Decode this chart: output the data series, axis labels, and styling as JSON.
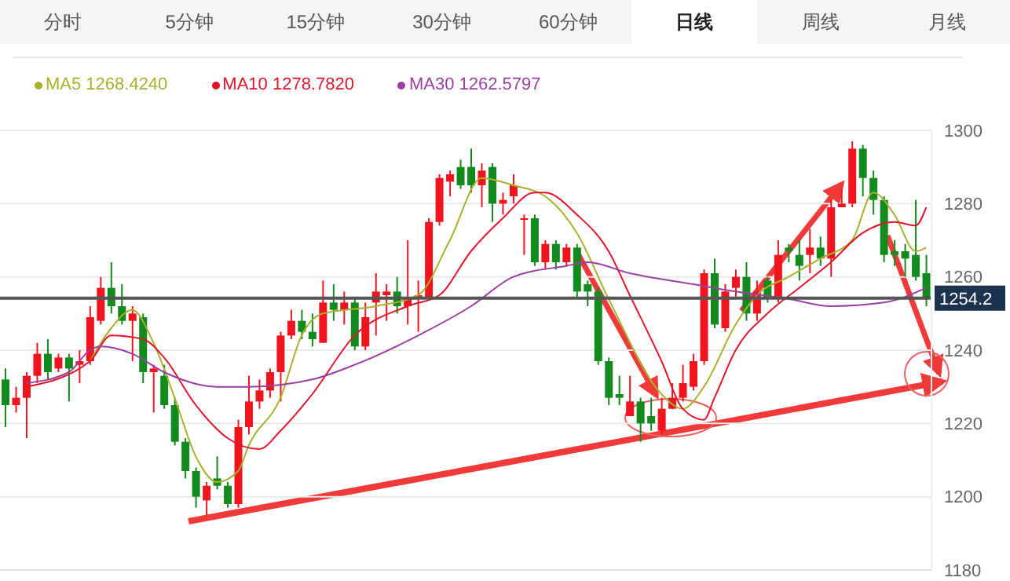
{
  "chart_data": {
    "type": "candlestick",
    "annotations": [
      "分时",
      "5分钟",
      "15分钟",
      "30分钟",
      "60分钟",
      "日线",
      "周线",
      "月线"
    ],
    "categories": [
      null,
      null,
      null,
      null,
      null,
      null,
      null,
      null,
      null,
      null,
      null,
      null,
      null,
      null,
      null,
      null,
      null,
      null,
      null,
      null,
      null,
      null,
      null,
      null,
      null,
      null,
      null,
      null,
      null,
      null,
      null,
      null,
      null,
      null,
      null,
      null,
      null,
      null,
      null,
      null,
      null,
      null,
      null,
      null,
      null,
      null,
      null,
      null,
      null,
      null,
      null,
      null,
      null,
      null,
      null,
      null,
      null,
      null,
      null,
      null,
      null,
      null,
      null,
      null,
      null,
      null,
      null,
      null,
      null,
      null,
      null,
      null,
      null,
      null,
      null,
      null,
      null,
      null,
      null,
      null,
      null,
      null,
      null,
      null,
      null,
      null,
      null,
      null
    ],
    "ohlc": [
      [
        1232,
        1235,
        1219,
        1225
      ],
      [
        1225,
        1230,
        1223,
        1227
      ],
      [
        1227,
        1234,
        1216,
        1233
      ],
      [
        1233,
        1242,
        1231,
        1239
      ],
      [
        1239,
        1243,
        1232,
        1234
      ],
      [
        1235,
        1239,
        1234,
        1238
      ],
      [
        1238,
        1239,
        1226,
        1235
      ],
      [
        1236,
        1240,
        1231,
        1237
      ],
      [
        1237,
        1252,
        1236,
        1249
      ],
      [
        1248,
        1260,
        1247,
        1257
      ],
      [
        1257,
        1264,
        1250,
        1252
      ],
      [
        1252,
        1258,
        1247,
        1248
      ],
      [
        1248,
        1252,
        1237,
        1250
      ],
      [
        1249,
        1250,
        1231,
        1234
      ],
      [
        1234,
        1236,
        1223,
        1235
      ],
      [
        1233,
        1236,
        1224,
        1225
      ],
      [
        1225,
        1227,
        1214,
        1215
      ],
      [
        1215,
        1216,
        1205,
        1207
      ],
      [
        1207,
        1208,
        1197,
        1200
      ],
      [
        1199,
        1204,
        1195,
        1203
      ],
      [
        1205,
        1211,
        1202,
        1203
      ],
      [
        1203,
        1204,
        1197,
        1198
      ],
      [
        1198,
        1221,
        1197,
        1219
      ],
      [
        1219,
        1233,
        1217,
        1226
      ],
      [
        1226,
        1232,
        1224,
        1229
      ],
      [
        1229,
        1235,
        1227,
        1234
      ],
      [
        1234,
        1245,
        1226,
        1244
      ],
      [
        1244,
        1251,
        1243,
        1248
      ],
      [
        1248,
        1251,
        1243,
        1245
      ],
      [
        1245,
        1250,
        1241,
        1243
      ],
      [
        1242,
        1259,
        1242,
        1253
      ],
      [
        1253,
        1258,
        1248,
        1251
      ],
      [
        1251,
        1256,
        1247,
        1253
      ],
      [
        1253,
        1254,
        1240,
        1241
      ],
      [
        1241,
        1253,
        1240,
        1249
      ],
      [
        1253,
        1261,
        1244,
        1256
      ],
      [
        1255,
        1258,
        1248,
        1256
      ],
      [
        1256,
        1260,
        1250,
        1252
      ],
      [
        1252,
        1270,
        1247,
        1254
      ],
      [
        1254,
        1259,
        1245,
        1255
      ],
      [
        1254,
        1276,
        1254,
        1275
      ],
      [
        1275,
        1288,
        1274,
        1287
      ],
      [
        1286,
        1289,
        1282,
        1288
      ],
      [
        1290,
        1292,
        1284,
        1285
      ],
      [
        1290,
        1295,
        1283,
        1285
      ],
      [
        1285,
        1291,
        1279,
        1289
      ],
      [
        1290,
        1291,
        1275,
        1280
      ],
      [
        1280,
        1283,
        1277,
        1281
      ],
      [
        1282,
        1288,
        1280,
        1285
      ],
      [
        1276,
        1277,
        1266,
        1276
      ],
      [
        1276,
        1277,
        1263,
        1264
      ],
      [
        1264,
        1270,
        1262,
        1269
      ],
      [
        1269,
        1270,
        1262,
        1264
      ],
      [
        1264,
        1269,
        1263,
        1268
      ],
      [
        1268,
        1269,
        1254,
        1256
      ],
      [
        1258,
        1259,
        1252,
        1256
      ],
      [
        1256,
        1257,
        1236,
        1237
      ],
      [
        1237,
        1238,
        1225,
        1227
      ],
      [
        1228,
        1233,
        1225,
        1227
      ],
      [
        1222,
        1233,
        1222,
        1226
      ],
      [
        1226,
        1227,
        1215,
        1220
      ],
      [
        1222,
        1227,
        1218,
        1220
      ],
      [
        1218,
        1227,
        1217,
        1224
      ],
      [
        1224,
        1231,
        1224,
        1227
      ],
      [
        1227,
        1236,
        1226,
        1231
      ],
      [
        1230,
        1239,
        1229,
        1237
      ],
      [
        1237,
        1262,
        1236,
        1261
      ],
      [
        1261,
        1265,
        1246,
        1247
      ],
      [
        1246,
        1258,
        1245,
        1256
      ],
      [
        1257,
        1262,
        1254,
        1260
      ],
      [
        1260,
        1264,
        1248,
        1250
      ],
      [
        1250,
        1259,
        1248,
        1256
      ],
      [
        1259,
        1260,
        1253,
        1254
      ],
      [
        1254,
        1270,
        1253,
        1266
      ],
      [
        1268,
        1269,
        1264,
        1267
      ],
      [
        1266,
        1270,
        1259,
        1263
      ],
      [
        1266,
        1273,
        1261,
        1268
      ],
      [
        1268,
        1271,
        1263,
        1265
      ],
      [
        1265,
        1281,
        1260,
        1279
      ],
      [
        1279,
        1284,
        1279,
        1280
      ],
      [
        1280,
        1297,
        1279,
        1295
      ],
      [
        1295,
        1296,
        1282,
        1287
      ],
      [
        1287,
        1289,
        1277,
        1281
      ],
      [
        1281,
        1282,
        1264,
        1266
      ],
      [
        1267,
        1270,
        1263,
        1266
      ],
      [
        1267,
        1269,
        1260,
        1265
      ],
      [
        1266,
        1281,
        1259,
        1260
      ],
      [
        1261,
        1266,
        1252,
        1254
      ]
    ],
    "colors": [
      "#138a1e",
      "#f0141e",
      "#f0141e",
      "#f0141e",
      "#138a1e",
      "#f0141e",
      "#138a1e",
      "#f0141e",
      "#f0141e",
      "#f0141e",
      "#138a1e",
      "#138a1e",
      "#f0141e",
      "#138a1e",
      "#f0141e",
      "#138a1e",
      "#138a1e",
      "#138a1e",
      "#138a1e",
      "#f0141e",
      "#138a1e",
      "#138a1e",
      "#f0141e",
      "#f0141e",
      "#f0141e",
      "#f0141e",
      "#f0141e",
      "#f0141e",
      "#138a1e",
      "#138a1e",
      "#f0141e",
      "#138a1e",
      "#f0141e",
      "#138a1e",
      "#f0141e",
      "#f0141e",
      "#f0141e",
      "#138a1e",
      "#f0141e",
      "#f0141e",
      "#f0141e",
      "#f0141e",
      "#f0141e",
      "#138a1e",
      "#138a1e",
      "#f0141e",
      "#138a1e",
      "#f0141e",
      "#f0141e",
      "#f0141e",
      "#138a1e",
      "#f0141e",
      "#138a1e",
      "#f0141e",
      "#138a1e",
      "#138a1e",
      "#138a1e",
      "#138a1e",
      "#138a1e",
      "#f0141e",
      "#138a1e",
      "#138a1e",
      "#f0141e",
      "#f0141e",
      "#f0141e",
      "#f0141e",
      "#f0141e",
      "#138a1e",
      "#f0141e",
      "#f0141e",
      "#138a1e",
      "#f0141e",
      "#138a1e",
      "#f0141e",
      "#138a1e",
      "#138a1e",
      "#f0141e",
      "#138a1e",
      "#f0141e",
      "#f0141e",
      "#f0141e",
      "#138a1e",
      "#138a1e",
      "#138a1e",
      "#138a1e",
      "#138a1e",
      "#138a1e",
      "#138a1e"
    ],
    "series": [
      {
        "name": "MA5 1268.4240",
        "type": "line",
        "color": "#a9b02c",
        "values": [
          null,
          null,
          null,
          null,
          null,
          null,
          null,
          null,
          1237,
          null,
          1246,
          null,
          1251,
          null,
          1242,
          null,
          1227,
          null,
          1211,
          null,
          1204,
          null,
          1207,
          1214,
          null,
          null,
          1227,
          null,
          1244,
          null,
          1250,
          null,
          null,
          null,
          null,
          1252,
          null,
          null,
          null,
          1255,
          null,
          null,
          1270,
          null,
          null,
          1287,
          null,
          null,
          1285,
          null,
          null,
          1282,
          null,
          null,
          1272,
          null,
          null,
          1254,
          null,
          null,
          null,
          null,
          1228,
          null,
          1224,
          null,
          1230,
          null,
          null,
          1247,
          null,
          1255,
          null,
          null,
          1260,
          null,
          null,
          1265,
          null,
          null,
          1270,
          null,
          1283,
          null,
          1277,
          null,
          1267,
          1268
        ]
      },
      {
        "name": "MA10 1278.7820",
        "type": "line",
        "color": "#e0142a",
        "values": [
          null,
          null,
          1230,
          null,
          null,
          null,
          null,
          null,
          1237,
          null,
          1244,
          null,
          null,
          1243,
          null,
          1238,
          null,
          null,
          1225,
          null,
          null,
          1216,
          null,
          null,
          1213,
          null,
          1218,
          null,
          null,
          1228,
          null,
          null,
          null,
          1244,
          null,
          null,
          null,
          null,
          1252,
          null,
          null,
          1255,
          null,
          null,
          1267,
          null,
          null,
          1276,
          null,
          null,
          1283,
          1283,
          null,
          null,
          1277,
          null,
          null,
          1267,
          null,
          1255,
          null,
          null,
          1237,
          null,
          1224,
          null,
          1221,
          1227,
          null,
          1240,
          null,
          null,
          1250,
          null,
          null,
          1257,
          null,
          null,
          1264,
          null,
          null,
          1272,
          null,
          null,
          1275,
          null,
          1274,
          1279
        ]
      },
      {
        "name": "MA30 1262.5797",
        "type": "line",
        "color": "#9c3fa3",
        "values": [
          null,
          null,
          1231,
          null,
          null,
          null,
          1234,
          null,
          1240,
          1241,
          null,
          null,
          1239,
          null,
          null,
          1234,
          null,
          null,
          null,
          null,
          1230,
          null,
          null,
          1230,
          null,
          null,
          null,
          null,
          null,
          1232,
          null,
          null,
          null,
          1236,
          null,
          null,
          null,
          null,
          null,
          1244,
          null,
          null,
          null,
          null,
          1252,
          null,
          null,
          null,
          1260,
          null,
          null,
          null,
          null,
          1263,
          null,
          1264,
          null,
          null,
          null,
          1261,
          null,
          null,
          null,
          null,
          null,
          1258,
          null,
          null,
          null,
          1256,
          null,
          null,
          null,
          null,
          1254,
          null,
          null,
          null,
          1252,
          null,
          null,
          null,
          null,
          1253,
          null,
          null,
          null,
          1257
        ]
      }
    ],
    "ylim": [
      1180,
      1300
    ],
    "yticks": [
      1180,
      1200,
      1220,
      1240,
      1260,
      1280,
      1300
    ],
    "grid": "y",
    "legend": "top left",
    "ref_lines": [
      {
        "axis": "y",
        "value": 1254.2,
        "label": "1254.2",
        "color": "#555555"
      }
    ]
  }
}
